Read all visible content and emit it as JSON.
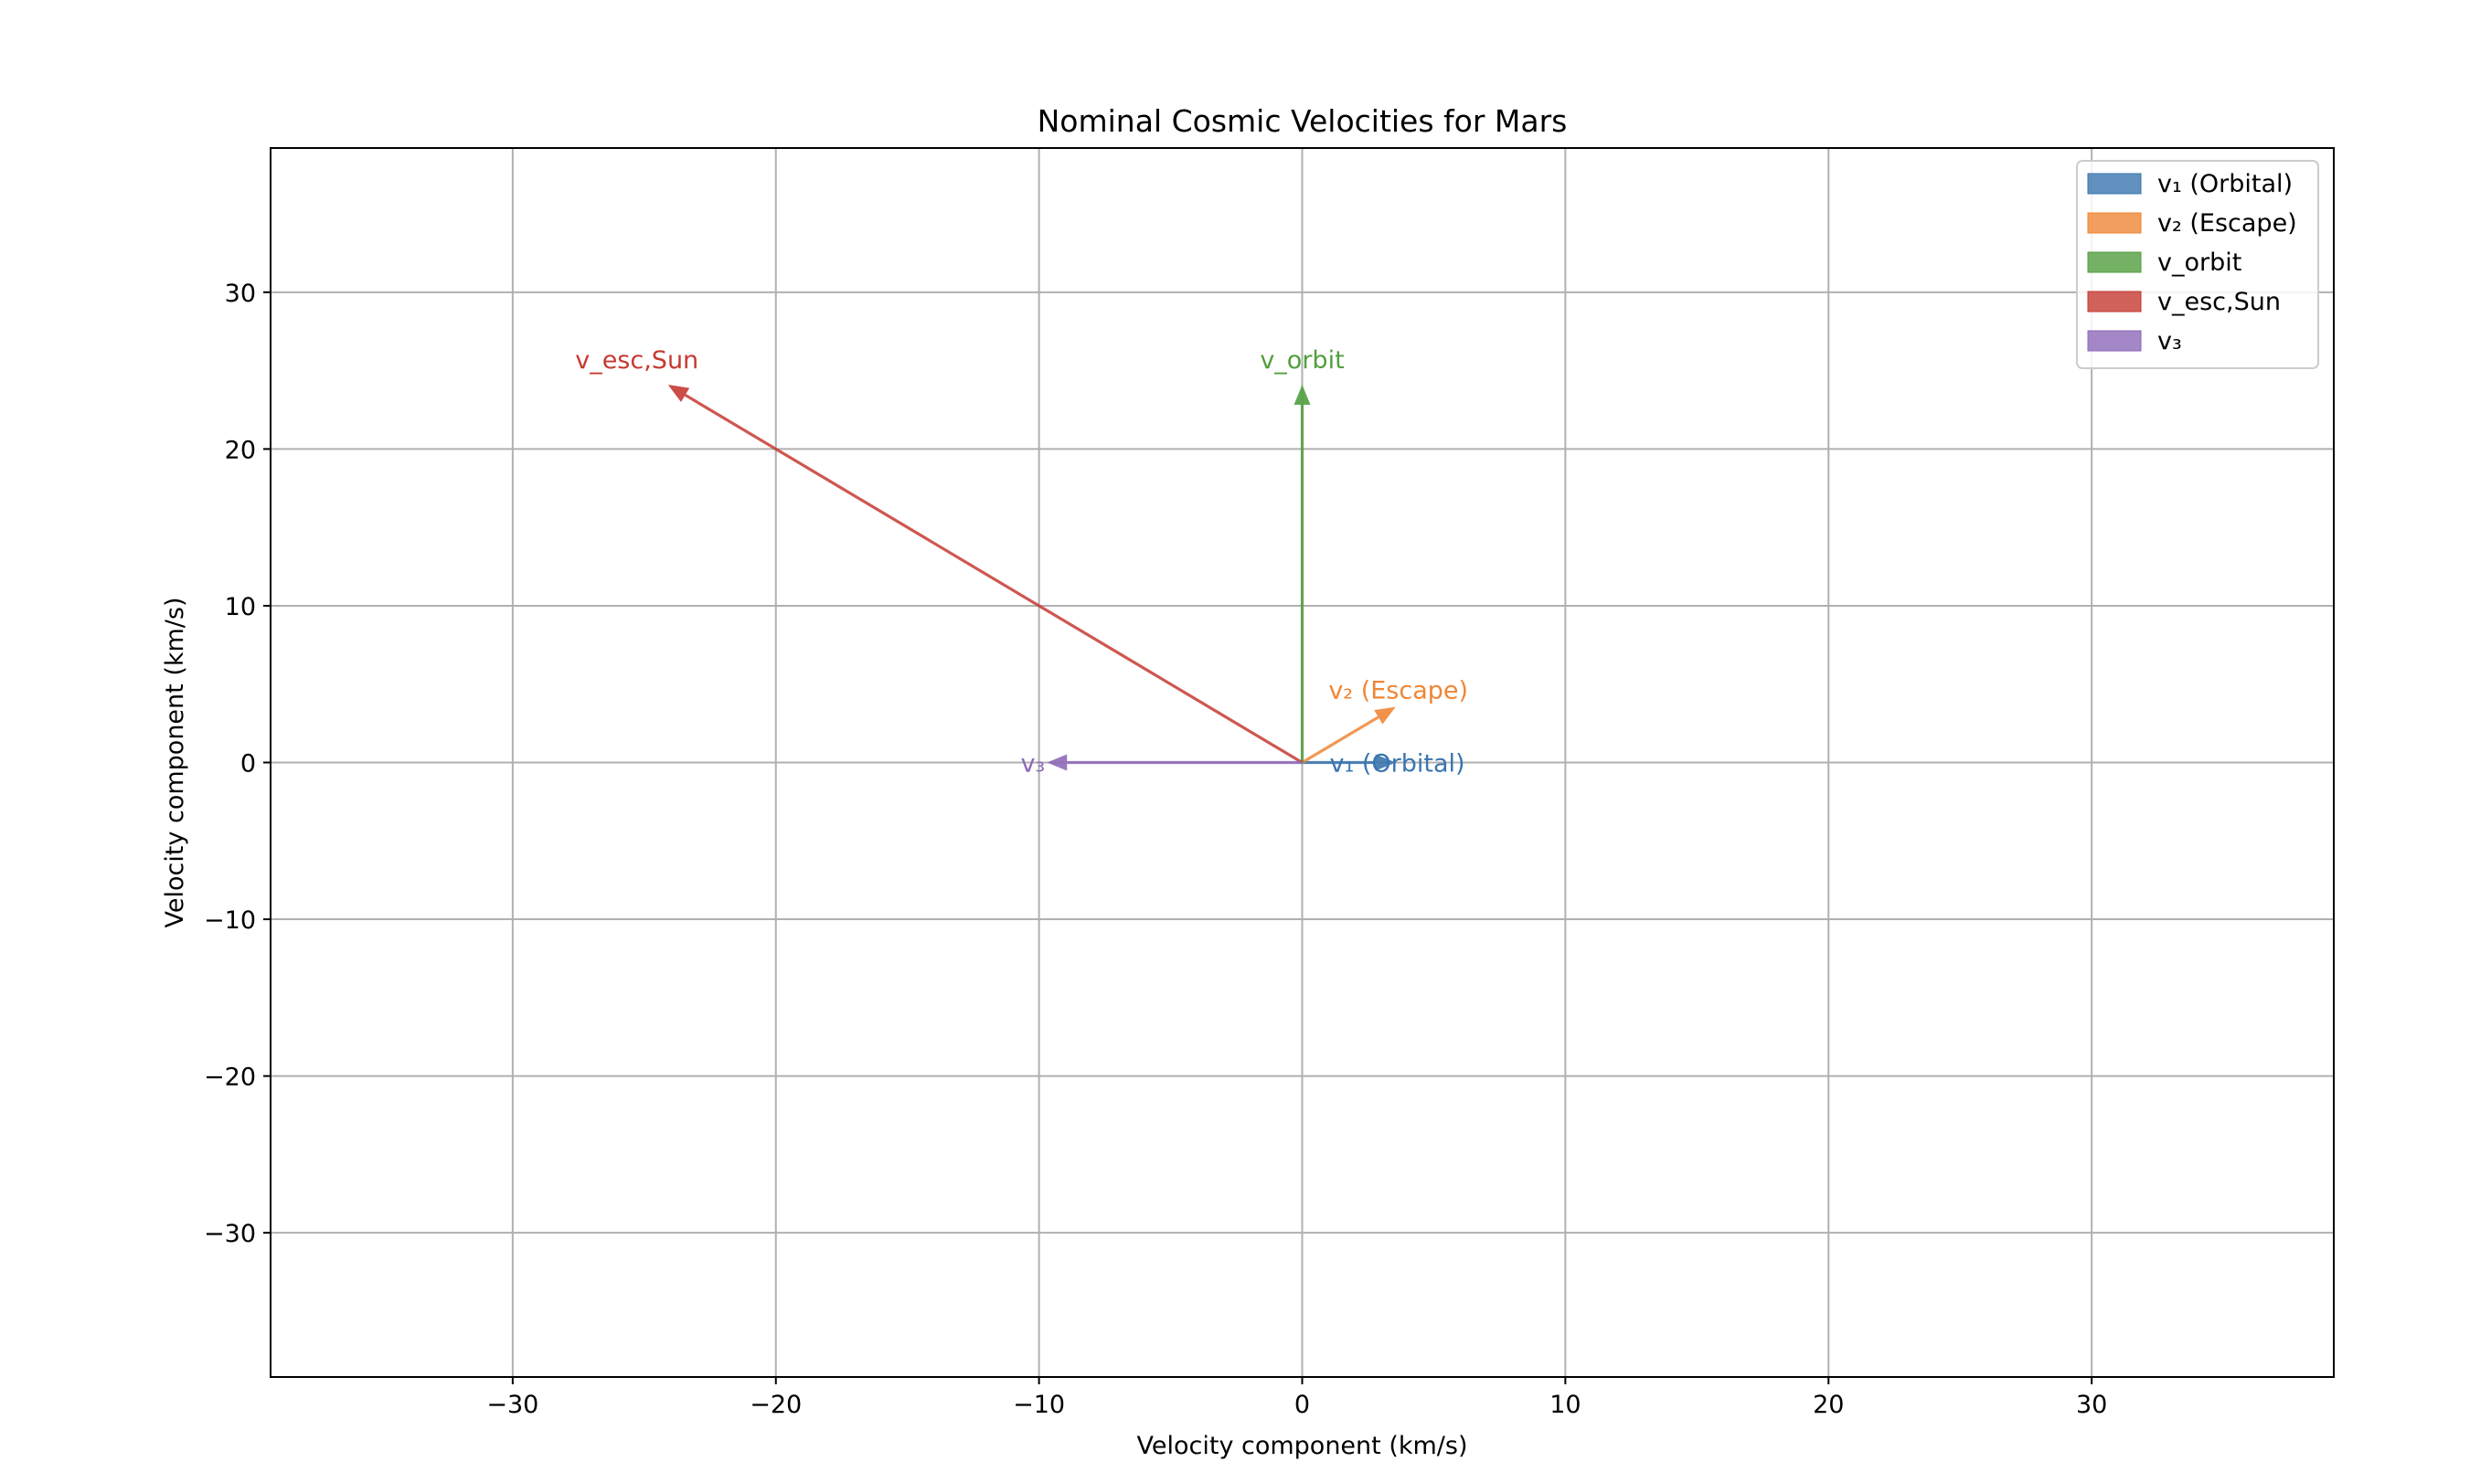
{
  "chart_data": {
    "type": "vector",
    "title": "Nominal Cosmic Velocities for Mars",
    "xlabel": "Velocity component (km/s)",
    "ylabel": "Velocity component (km/s)",
    "xlim": [
      -39.2,
      39.2
    ],
    "ylim": [
      -39.2,
      39.2
    ],
    "xticks": [
      -30,
      -20,
      -10,
      0,
      10,
      20,
      30
    ],
    "yticks": [
      -30,
      -20,
      -10,
      0,
      10,
      20,
      30
    ],
    "xtick_labels": [
      "−30",
      "−20",
      "−10",
      "0",
      "10",
      "20",
      "30"
    ],
    "ytick_labels": [
      "−30",
      "−20",
      "−10",
      "0",
      "10",
      "20",
      "30"
    ],
    "grid": true,
    "legend_position": "top-right",
    "series": [
      {
        "name": "v₁ (Orbital)",
        "label": "v₁ (Orbital)",
        "color": "#3a75af",
        "x": 3.55,
        "y": 0.0
      },
      {
        "name": "v₂ (Escape)",
        "label": "v₂ (Escape)",
        "color": "#ef8636",
        "x": 3.55,
        "y": 3.55
      },
      {
        "name": "v_orbit",
        "label": "v_orbit",
        "color": "#519e3e",
        "x": 0.0,
        "y": 24.1
      },
      {
        "name": "v_esc,Sun",
        "label": "v_esc,Sun",
        "color": "#c53a32",
        "x": -24.1,
        "y": 24.1
      },
      {
        "name": "v₃",
        "label": "v₃",
        "color": "#8d69b8",
        "x": -9.7,
        "y": 0.0
      }
    ]
  }
}
